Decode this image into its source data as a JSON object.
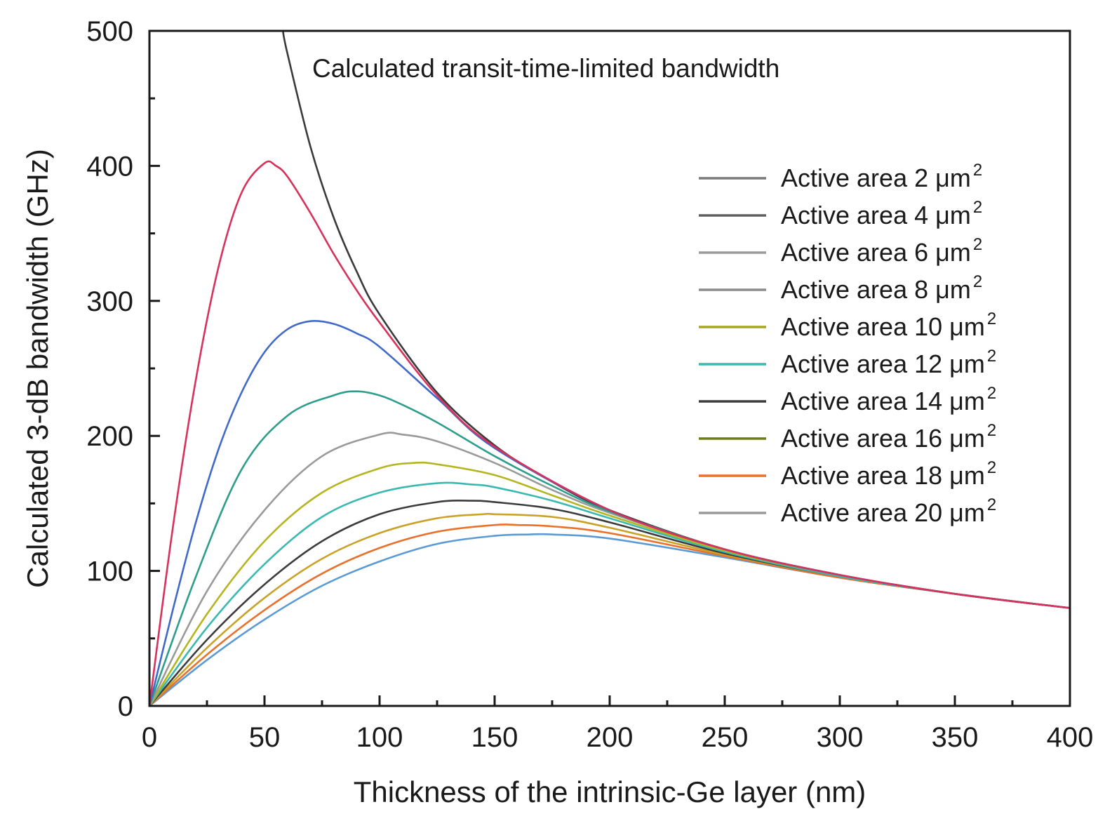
{
  "chart_data": {
    "type": "line",
    "xlabel": "Thickness of the intrinsic-Ge layer (nm)",
    "ylabel": "Calculated 3-dB bandwidth (GHz)",
    "xlim": [
      0,
      400
    ],
    "ylim": [
      0,
      500
    ],
    "xticks": [
      "0",
      "50",
      "100",
      "150",
      "200",
      "250",
      "300",
      "350",
      "400"
    ],
    "yticks": [
      "0",
      "100",
      "200",
      "300",
      "400",
      "500"
    ],
    "grid": false,
    "legend_position": "right",
    "annotation": "Calculated transit-time-limited bandwidth",
    "transit_curve": {
      "color": "#3a3a3a",
      "points": [
        [
          58,
          500
        ],
        [
          60,
          483
        ],
        [
          70,
          414
        ],
        [
          80,
          362
        ],
        [
          90,
          322
        ],
        [
          100,
          290
        ],
        [
          125,
          232
        ],
        [
          150,
          193
        ],
        [
          175,
          166
        ],
        [
          200,
          145
        ],
        [
          250,
          116
        ],
        [
          300,
          97
        ],
        [
          350,
          83
        ],
        [
          400,
          72.5
        ]
      ]
    },
    "series": [
      {
        "name": "Active area 2 μm",
        "sup": "2",
        "color": "#7a7a7a",
        "legend_color": "#7a7a7a",
        "curve_color": "#d8315b",
        "values": [
          [
            0,
            0
          ],
          [
            10,
            130
          ],
          [
            20,
            240
          ],
          [
            30,
            325
          ],
          [
            40,
            380
          ],
          [
            50,
            402
          ],
          [
            55,
            400
          ],
          [
            60,
            392
          ],
          [
            70,
            365
          ],
          [
            80,
            335
          ],
          [
            90,
            308
          ],
          [
            100,
            284
          ],
          [
            125,
            230
          ],
          [
            150,
            192
          ],
          [
            200,
            145
          ],
          [
            250,
            116
          ],
          [
            300,
            97
          ],
          [
            350,
            83
          ],
          [
            400,
            72.5
          ]
        ]
      },
      {
        "name": "Active area 4 μm",
        "sup": "2",
        "color": "#5f5f5f",
        "legend_color": "#5f5f5f",
        "curve_color": "#4169c9",
        "values": [
          [
            0,
            0
          ],
          [
            10,
            70
          ],
          [
            20,
            135
          ],
          [
            30,
            190
          ],
          [
            40,
            232
          ],
          [
            50,
            262
          ],
          [
            60,
            279
          ],
          [
            70,
            285
          ],
          [
            80,
            283
          ],
          [
            90,
            276
          ],
          [
            100,
            266
          ],
          [
            125,
            228
          ],
          [
            150,
            191
          ],
          [
            200,
            145
          ],
          [
            250,
            116
          ],
          [
            300,
            97
          ],
          [
            350,
            83
          ],
          [
            400,
            72.5
          ]
        ]
      },
      {
        "name": "Active area 6 μm",
        "sup": "2",
        "color": "#9a9a9a",
        "legend_color": "#9a9a9a",
        "curve_color": "#2e9e8c",
        "values": [
          [
            0,
            0
          ],
          [
            20,
            95
          ],
          [
            40,
            175
          ],
          [
            60,
            215
          ],
          [
            80,
            230
          ],
          [
            90,
            233
          ],
          [
            100,
            230
          ],
          [
            110,
            223
          ],
          [
            125,
            210
          ],
          [
            150,
            185
          ],
          [
            175,
            163
          ],
          [
            200,
            144
          ],
          [
            250,
            116
          ],
          [
            300,
            97
          ],
          [
            350,
            83
          ],
          [
            400,
            72.5
          ]
        ]
      },
      {
        "name": "Active area 8 μm",
        "sup": "2",
        "color": "#8c8c8c",
        "legend_color": "#8c8c8c",
        "curve_color": "#9a9a9a",
        "values": [
          [
            0,
            0
          ],
          [
            25,
            85
          ],
          [
            50,
            145
          ],
          [
            75,
            185
          ],
          [
            100,
            201
          ],
          [
            110,
            201
          ],
          [
            125,
            196
          ],
          [
            150,
            180
          ],
          [
            175,
            160
          ],
          [
            200,
            143
          ],
          [
            250,
            116
          ],
          [
            300,
            97
          ],
          [
            350,
            83
          ],
          [
            400,
            72.5
          ]
        ]
      },
      {
        "name": "Active area 10 μm",
        "sup": "2",
        "color": "#a8a81e",
        "legend_color": "#a8a81e",
        "curve_color": "#b5b520",
        "values": [
          [
            0,
            0
          ],
          [
            25,
            68
          ],
          [
            50,
            122
          ],
          [
            75,
            158
          ],
          [
            100,
            176
          ],
          [
            115,
            180
          ],
          [
            125,
            179
          ],
          [
            150,
            171
          ],
          [
            175,
            156
          ],
          [
            200,
            141
          ],
          [
            250,
            115
          ],
          [
            300,
            97
          ],
          [
            350,
            83
          ],
          [
            400,
            72.5
          ]
        ]
      },
      {
        "name": "Active area 12 μm",
        "sup": "2",
        "color": "#3ab9b0",
        "legend_color": "#3ab9b0",
        "curve_color": "#3ab9b0",
        "values": [
          [
            0,
            0
          ],
          [
            25,
            58
          ],
          [
            50,
            105
          ],
          [
            75,
            140
          ],
          [
            100,
            158
          ],
          [
            125,
            165
          ],
          [
            140,
            164
          ],
          [
            150,
            162
          ],
          [
            175,
            152
          ],
          [
            200,
            139
          ],
          [
            250,
            114
          ],
          [
            300,
            96
          ],
          [
            350,
            83
          ],
          [
            400,
            72.5
          ]
        ]
      },
      {
        "name": "Active area 14 μm",
        "sup": "2",
        "color": "#3c3c3c",
        "legend_color": "#3c3c3c",
        "curve_color": "#3c3c3c",
        "values": [
          [
            0,
            0
          ],
          [
            25,
            49
          ],
          [
            50,
            90
          ],
          [
            75,
            122
          ],
          [
            100,
            142
          ],
          [
            125,
            151
          ],
          [
            140,
            152
          ],
          [
            150,
            151
          ],
          [
            175,
            146
          ],
          [
            200,
            136
          ],
          [
            250,
            113
          ],
          [
            300,
            96
          ],
          [
            350,
            83
          ],
          [
            400,
            72.5
          ]
        ]
      },
      {
        "name": "Active area 16 μm",
        "sup": "2",
        "color": "#6b7f12",
        "legend_color": "#6b7f12",
        "curve_color": "#c9a227",
        "values": [
          [
            0,
            0
          ],
          [
            25,
            43
          ],
          [
            50,
            80
          ],
          [
            75,
            109
          ],
          [
            100,
            128
          ],
          [
            125,
            139
          ],
          [
            145,
            142
          ],
          [
            150,
            142
          ],
          [
            175,
            140
          ],
          [
            200,
            132
          ],
          [
            250,
            112
          ],
          [
            300,
            96
          ],
          [
            350,
            83
          ],
          [
            400,
            72.5
          ]
        ]
      },
      {
        "name": "Active area 18 μm",
        "sup": "2",
        "color": "#e8712c",
        "legend_color": "#e8712c",
        "curve_color": "#e8712c",
        "values": [
          [
            0,
            0
          ],
          [
            25,
            38
          ],
          [
            50,
            71
          ],
          [
            75,
            98
          ],
          [
            100,
            117
          ],
          [
            125,
            129
          ],
          [
            150,
            134
          ],
          [
            160,
            134
          ],
          [
            175,
            133
          ],
          [
            200,
            128
          ],
          [
            250,
            111
          ],
          [
            300,
            95
          ],
          [
            350,
            83
          ],
          [
            400,
            72.5
          ]
        ]
      },
      {
        "name": "Active area 20 μm",
        "sup": "2",
        "color": "#8a8a8a",
        "legend_color": "#9a9a9a",
        "curve_color": "#5b9bd5",
        "values": [
          [
            0,
            0
          ],
          [
            25,
            34
          ],
          [
            50,
            64
          ],
          [
            75,
            89
          ],
          [
            100,
            107
          ],
          [
            125,
            120
          ],
          [
            150,
            126
          ],
          [
            165,
            127
          ],
          [
            175,
            127
          ],
          [
            200,
            124
          ],
          [
            250,
            110
          ],
          [
            300,
            95
          ],
          [
            350,
            83
          ],
          [
            400,
            72.5
          ]
        ]
      }
    ]
  }
}
